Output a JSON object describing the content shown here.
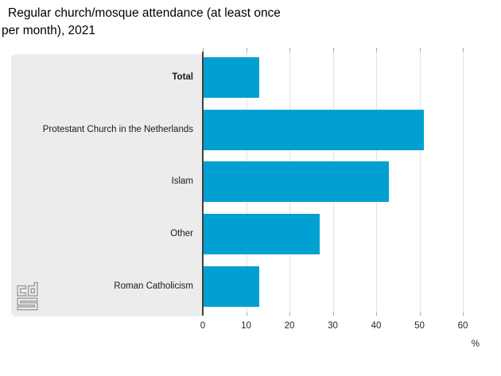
{
  "title": "Regular church/mosque attendance (at least once per month), 2021",
  "chart_data": {
    "type": "bar",
    "orientation": "horizontal",
    "title": "Regular church/mosque attendance (at least once per month), 2021",
    "categories": [
      "Total",
      "Protestant Church in the Netherlands",
      "Islam",
      "Other",
      "Roman Catholicism"
    ],
    "values": [
      13,
      51,
      43,
      27,
      13
    ],
    "emphasized_category": "Total",
    "xlabel": "%",
    "xlim": [
      0,
      60
    ],
    "xticks": [
      0,
      10,
      20,
      30,
      40,
      50,
      60
    ],
    "grid": true,
    "legend": "none",
    "bar_color": "#00a1d2"
  },
  "colors": {
    "bar": "#00a1d2",
    "panel": "#ececec",
    "gridline": "#e3e3e3",
    "axis_line": "#404040",
    "tick": "#a6a6a6",
    "text": "#1a1a1a"
  },
  "logo": {
    "name": "cbs-logo",
    "color": "#9a9a9a"
  }
}
